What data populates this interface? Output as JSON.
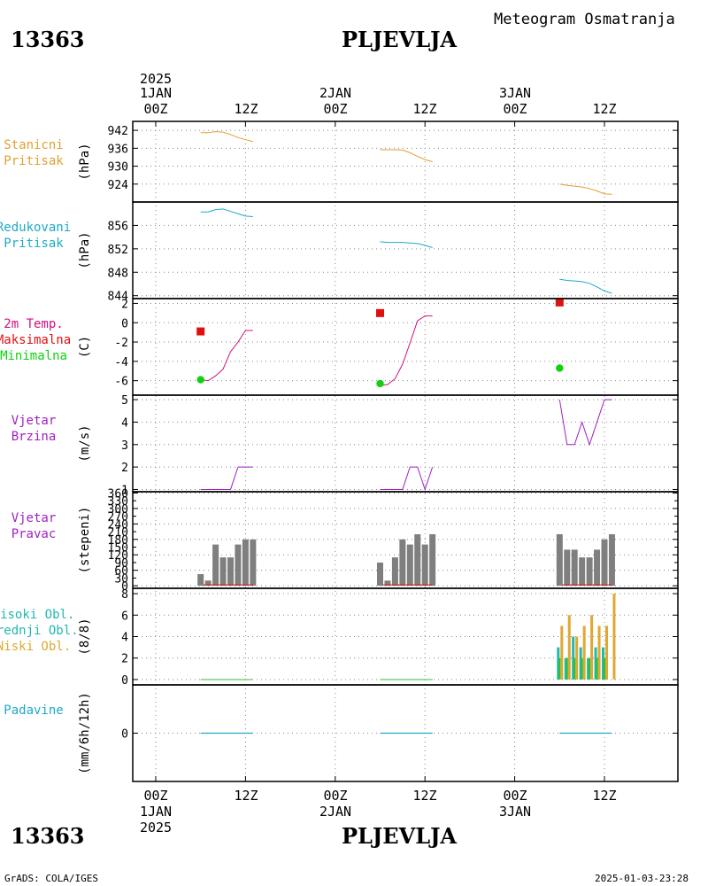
{
  "header": {
    "station_id": "13363",
    "station_name": "PLJEVLJA",
    "title": "Meteogram Osmatranja",
    "year": "2025",
    "top_dates": [
      "1JAN",
      "2JAN",
      "3JAN"
    ],
    "top_hours": [
      "00Z",
      "12Z",
      "00Z",
      "12Z",
      "00Z",
      "12Z"
    ]
  },
  "footer": {
    "station_id": "13363",
    "station_name": "PLJEVLJA",
    "credit": "GrADS: COLA/IGES",
    "timestamp": "2025-01-03-23:28",
    "bottom_hours": [
      "00Z",
      "12Z",
      "00Z",
      "12Z",
      "00Z",
      "12Z"
    ],
    "bottom_dates": [
      "1JAN",
      "2JAN",
      "3JAN"
    ],
    "year": "2025"
  },
  "colors": {
    "station_pressure": "#e0a030",
    "reduced_pressure": "#20a8c8",
    "temp_max": "#e01010",
    "temp_min": "#10d010",
    "temp_line": "#d01080",
    "wind": "#a020c0",
    "bars": "#7f7f7f",
    "high_cloud": "#20b8b0",
    "mid_cloud": "#30c030",
    "low_cloud": "#e0a830",
    "precip": "#20a8c8"
  },
  "chart_data": [
    {
      "type": "line",
      "labels": [
        "Stanicni",
        "Pritisak"
      ],
      "ylabel": "(hPa)",
      "ylim": [
        918,
        945
      ],
      "yticks": [
        942,
        936,
        930,
        924
      ],
      "x_unit": "hours since 2025-01-01 00Z",
      "series": [
        {
          "x": [
            6,
            7,
            8,
            9,
            10,
            11,
            12,
            13
          ],
          "values": [
            941.2,
            941.2,
            941.6,
            941.4,
            940.6,
            939.6,
            938.9,
            938.2
          ]
        },
        {
          "x": [
            30,
            31,
            32,
            33,
            34,
            35,
            36,
            37
          ],
          "values": [
            935.5,
            935.5,
            935.5,
            935.4,
            934.5,
            933.3,
            932.2,
            931.5
          ]
        },
        {
          "x": [
            54,
            55,
            56,
            57,
            58,
            59,
            60,
            61
          ],
          "values": [
            924.0,
            923.6,
            923.3,
            923.0,
            922.5,
            921.7,
            920.7,
            920.6
          ]
        }
      ]
    },
    {
      "type": "line",
      "labels": [
        "Redukovani",
        "Pritisak"
      ],
      "ylabel": "(hPa)",
      "ylim": [
        843.5,
        860
      ],
      "yticks": [
        856,
        852,
        848,
        844
      ],
      "series": [
        {
          "x": [
            6,
            7,
            8,
            9,
            10,
            11,
            12,
            13
          ],
          "values": [
            858.3,
            858.3,
            858.7,
            858.8,
            858.4,
            858.0,
            857.6,
            857.5
          ]
        },
        {
          "x": [
            30,
            31,
            32,
            33,
            34,
            35,
            36,
            37
          ],
          "values": [
            853.2,
            853.1,
            853.1,
            853.1,
            853.0,
            852.9,
            852.6,
            852.2
          ]
        },
        {
          "x": [
            54,
            55,
            56,
            57,
            58,
            59,
            60,
            61
          ],
          "values": [
            846.8,
            846.6,
            846.5,
            846.4,
            846.1,
            845.5,
            844.8,
            844.4
          ]
        }
      ]
    },
    {
      "type": "line",
      "labels": [
        "2m Temp.",
        "Maksimalna",
        "Minimalna"
      ],
      "ylabel": "(C)",
      "ylim": [
        -7.5,
        2.5
      ],
      "yticks": [
        2,
        0,
        -2,
        -4,
        -6
      ],
      "series": [
        {
          "x": [
            6,
            7,
            8,
            9,
            10,
            11,
            12,
            13
          ],
          "values": [
            -5.9,
            -6.0,
            -5.5,
            -4.8,
            -3.0,
            -2.0,
            -0.8,
            -0.8
          ]
        },
        {
          "x": [
            30,
            31,
            32,
            33,
            34,
            35,
            36,
            37
          ],
          "values": [
            -6.5,
            -6.4,
            -5.8,
            -4.3,
            -2.1,
            0.2,
            0.7,
            0.7
          ]
        }
      ],
      "max_points": [
        {
          "x": 6,
          "value": -0.9
        },
        {
          "x": 30,
          "value": 1.0
        },
        {
          "x": 54,
          "value": 2.1
        }
      ],
      "min_points": [
        {
          "x": 6,
          "value": -5.9
        },
        {
          "x": 30,
          "value": -6.3
        },
        {
          "x": 54,
          "value": -4.7
        }
      ]
    },
    {
      "type": "line",
      "labels": [
        "Vjetar",
        "Brzina"
      ],
      "ylabel": "(m/s)",
      "ylim": [
        0.9,
        5.2
      ],
      "yticks": [
        5,
        4,
        3,
        2,
        1
      ],
      "series": [
        {
          "x": [
            6,
            7,
            8,
            9,
            10,
            11,
            12,
            13
          ],
          "values": [
            1,
            1,
            1,
            1,
            1,
            2,
            2,
            2
          ]
        },
        {
          "x": [
            30,
            31,
            32,
            33,
            34,
            35,
            36,
            37
          ],
          "values": [
            1,
            1,
            1,
            1,
            2,
            2,
            1,
            2
          ]
        },
        {
          "x": [
            54,
            55,
            56,
            57,
            58,
            59,
            60,
            61
          ],
          "values": [
            5,
            3,
            3,
            4,
            3,
            4,
            5,
            5
          ]
        }
      ]
    },
    {
      "type": "bar",
      "labels": [
        "Vjetar",
        "Pravac"
      ],
      "ylabel": "(stepeni)",
      "ylim": [
        -10,
        365
      ],
      "yticks": [
        360,
        300,
        240,
        180,
        120,
        60,
        0
      ],
      "yticks_extra": [
        330,
        270,
        210,
        150,
        90,
        30
      ],
      "series": [
        {
          "x": [
            6,
            7,
            8,
            9,
            10,
            11,
            12,
            13
          ],
          "values": [
            45,
            20,
            160,
            110,
            110,
            160,
            180,
            180
          ]
        },
        {
          "x": [
            30,
            31,
            32,
            33,
            34,
            35,
            36,
            37
          ],
          "values": [
            90,
            20,
            110,
            180,
            160,
            200,
            160,
            200
          ]
        },
        {
          "x": [
            54,
            55,
            56,
            57,
            58,
            59,
            60,
            61
          ],
          "values": [
            200,
            140,
            140,
            110,
            110,
            140,
            180,
            200
          ]
        }
      ]
    },
    {
      "type": "bar",
      "labels": [
        "Visoki Obl.",
        "Srednji Obl.",
        "Niski Obl."
      ],
      "ylabel": "(8/8)",
      "ylim": [
        -0.5,
        8.5
      ],
      "yticks": [
        8,
        6,
        4,
        2,
        0
      ],
      "series": [
        {
          "name": "Visoki Obl.",
          "x": [
            54,
            55,
            56,
            57,
            58,
            59,
            60,
            61
          ],
          "values": [
            3,
            2,
            4,
            3,
            2,
            3,
            3,
            0
          ]
        },
        {
          "name": "Srednji Obl.",
          "x": [
            54,
            55,
            56,
            57,
            58,
            59,
            60,
            61
          ],
          "values": [
            2,
            2,
            2,
            2,
            2,
            2,
            2,
            0
          ]
        },
        {
          "name": "Niski Obl.",
          "x": [
            54,
            55,
            56,
            57,
            58,
            59,
            60,
            61
          ],
          "values": [
            5,
            6,
            4,
            5,
            6,
            5,
            5,
            8
          ]
        }
      ]
    },
    {
      "type": "line",
      "labels": [
        "Padavine"
      ],
      "ylabel": "(mm/6h/12h)",
      "ylim": [
        -4,
        4
      ],
      "yticks": [
        0
      ],
      "series": [
        {
          "x": [
            6,
            13
          ],
          "values": [
            0,
            0
          ]
        },
        {
          "x": [
            30,
            37
          ],
          "values": [
            0,
            0
          ]
        },
        {
          "x": [
            54,
            61
          ],
          "values": [
            0,
            0
          ]
        }
      ]
    }
  ]
}
